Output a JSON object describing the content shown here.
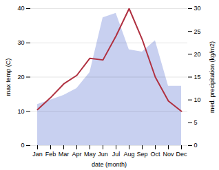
{
  "chart_data": {
    "type": "line",
    "categories": [
      "Jan",
      "Feb",
      "Mar",
      "Apr",
      "May",
      "Jun",
      "Jul",
      "Aug",
      "Sep",
      "Oct",
      "Nov",
      "Dec"
    ],
    "xlabel": "date (month)",
    "ylabel": "max temp (C)",
    "y2label": "med. precipitation (kg/m2)",
    "ylim": [
      0,
      40
    ],
    "yticks": [
      0,
      10,
      20,
      30,
      40
    ],
    "y2lim": [
      0,
      30
    ],
    "y2ticks": [
      0,
      5,
      10,
      15,
      20,
      25,
      30
    ],
    "grid": true,
    "series": [
      {
        "type": "area",
        "axis": "y2",
        "color": "#c8d0f0",
        "values": [
          9.0,
          10.0,
          11.0,
          12.5,
          16.0,
          28.0,
          29.0,
          21.0,
          20.5,
          23.0,
          13.0,
          13.0
        ]
      },
      {
        "type": "line",
        "color": "#b03040",
        "values": [
          10.5,
          14.0,
          18.0,
          20.5,
          25.5,
          25.0,
          32.0,
          40.0,
          31.0,
          20.0,
          13.0,
          10.0
        ]
      }
    ]
  }
}
